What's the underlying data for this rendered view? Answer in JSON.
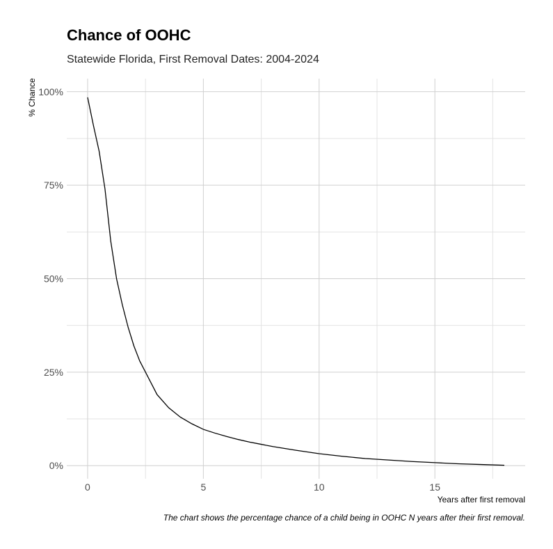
{
  "chart_data": {
    "type": "line",
    "title": "Chance of OOHC",
    "subtitle": "Statewide Florida, First Removal Dates: 2004-2024",
    "xlabel": "Years after first removal",
    "ylabel": "% Chance",
    "caption": "The chart shows the percentage chance of a child being in OOHC N years after their first removal.",
    "xlim": [
      -0.9,
      18.9
    ],
    "ylim": [
      -0.035,
      1.035
    ],
    "x_ticks": [
      0,
      5,
      10,
      15
    ],
    "x_tick_labels": [
      "0",
      "5",
      "10",
      "15"
    ],
    "y_ticks": [
      0,
      0.25,
      0.5,
      0.75,
      1.0
    ],
    "y_tick_labels": [
      "0%",
      "25%",
      "50%",
      "75%",
      "100%"
    ],
    "grid": true,
    "legend": "none",
    "colors": {
      "line": "#000000",
      "grid": "#cfcfcf"
    },
    "series": [
      {
        "x": [
          0,
          0.25,
          0.5,
          0.75,
          1,
          1.25,
          1.5,
          1.75,
          2,
          2.25,
          2.5,
          2.75,
          3,
          3.5,
          4,
          4.5,
          5,
          5.5,
          6,
          6.5,
          7,
          7.5,
          8,
          9,
          10,
          11,
          12,
          13,
          14,
          15,
          16,
          17,
          18
        ],
        "values": [
          0.985,
          0.91,
          0.84,
          0.74,
          0.6,
          0.5,
          0.43,
          0.37,
          0.32,
          0.28,
          0.25,
          0.22,
          0.19,
          0.155,
          0.13,
          0.112,
          0.097,
          0.087,
          0.078,
          0.07,
          0.063,
          0.057,
          0.051,
          0.041,
          0.032,
          0.025,
          0.019,
          0.015,
          0.011,
          0.008,
          0.005,
          0.003,
          0.001
        ]
      }
    ]
  }
}
